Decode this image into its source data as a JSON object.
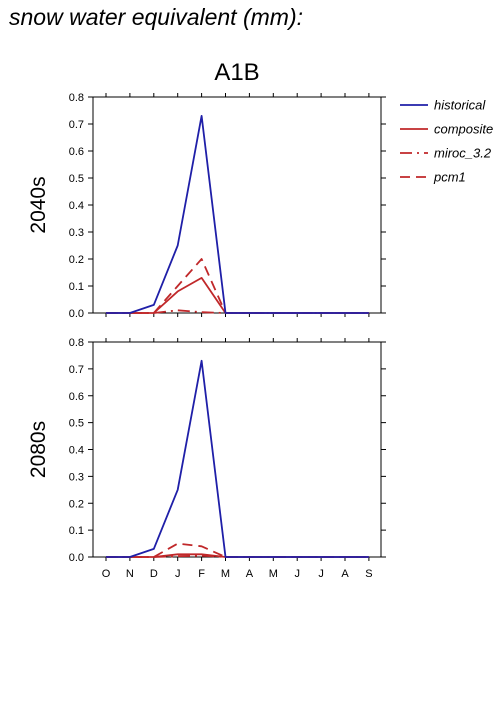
{
  "page": {
    "title": "snow water equivalent (mm):"
  },
  "chart_data": {
    "type": "line",
    "title": "A1B",
    "categories": [
      "O",
      "N",
      "D",
      "J",
      "F",
      "M",
      "A",
      "M",
      "J",
      "J",
      "A",
      "S"
    ],
    "ylim": [
      0,
      0.8
    ],
    "yticks": [
      "0.0",
      "0.1",
      "0.2",
      "0.3",
      "0.4",
      "0.5",
      "0.6",
      "0.7",
      "0.8"
    ],
    "colors": {
      "historical": "#1f1fa8",
      "scenario": "#c0282a"
    },
    "legend": {
      "placement": "right",
      "entries": [
        {
          "label": "historical",
          "color": "#1f1fa8",
          "dash": "solid"
        },
        {
          "label": "composite",
          "color": "#c0282a",
          "dash": "solid"
        },
        {
          "label": "miroc_3.2",
          "color": "#c0282a",
          "dash": "dashdot"
        },
        {
          "label": "pcm1",
          "color": "#c0282a",
          "dash": "dashed"
        }
      ]
    },
    "panels": [
      {
        "row_label": "2040s",
        "series": [
          {
            "name": "historical",
            "values": [
              0,
              0,
              0.03,
              0.25,
              0.73,
              0,
              0,
              0,
              0,
              0,
              0,
              0
            ]
          },
          {
            "name": "composite",
            "values": [
              0,
              0,
              0,
              0.08,
              0.13,
              0,
              0,
              0,
              0,
              0,
              0,
              0
            ]
          },
          {
            "name": "miroc_3.2",
            "values": [
              0,
              0,
              0,
              0.01,
              0.003,
              0,
              0,
              0,
              0,
              0,
              0,
              0
            ]
          },
          {
            "name": "pcm1",
            "values": [
              0,
              0,
              0,
              0.1,
              0.2,
              0,
              0,
              0,
              0,
              0,
              0,
              0
            ]
          }
        ]
      },
      {
        "row_label": "2080s",
        "series": [
          {
            "name": "historical",
            "values": [
              0,
              0,
              0.03,
              0.25,
              0.73,
              0,
              0,
              0,
              0,
              0,
              0,
              0
            ]
          },
          {
            "name": "composite",
            "values": [
              0,
              0,
              0,
              0.01,
              0.01,
              0,
              0,
              0,
              0,
              0,
              0,
              0
            ]
          },
          {
            "name": "miroc_3.2",
            "values": [
              0,
              0,
              0,
              0.003,
              0.005,
              0,
              0,
              0,
              0,
              0,
              0,
              0
            ]
          },
          {
            "name": "pcm1",
            "values": [
              0,
              0,
              0,
              0.05,
              0.04,
              0,
              0,
              0,
              0,
              0,
              0,
              0
            ]
          }
        ]
      }
    ]
  }
}
